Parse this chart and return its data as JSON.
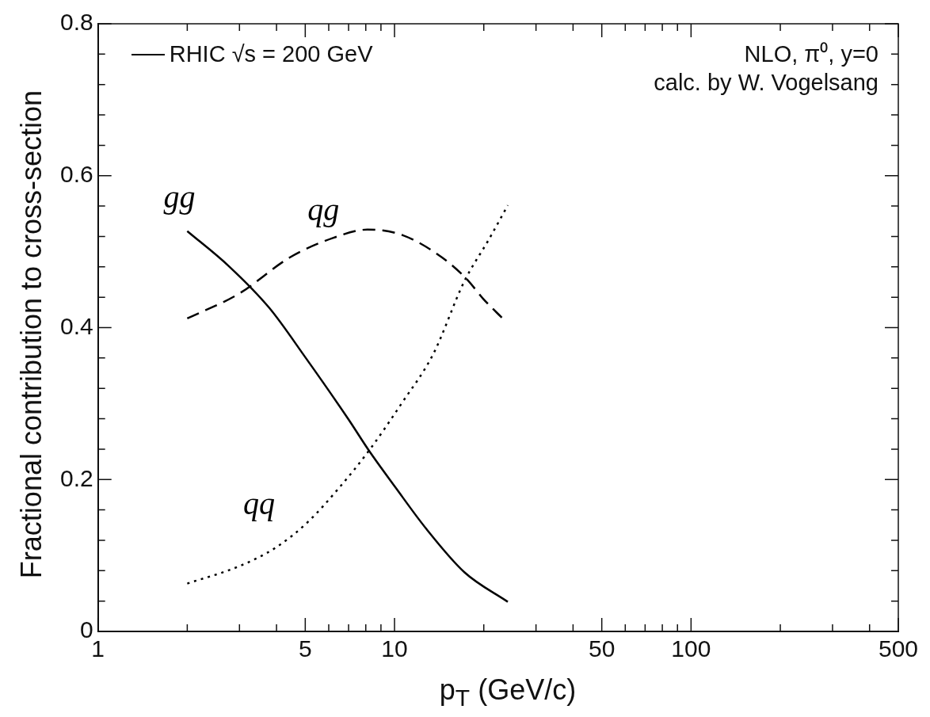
{
  "chart_data": {
    "type": "line",
    "xlabel": "p$_{T}$ (GeV/c)",
    "ylabel": "Fractional contribution to cross-section",
    "annotations": [
      "RHIC √s = 200 GeV",
      "NLO, π⁰, y=0",
      "calc. by W. Vogelsang"
    ],
    "log": "x",
    "grid": false,
    "legend": false,
    "marker": "none",
    "xlim": [
      1,
      500
    ],
    "ylim": [
      0,
      0.8
    ],
    "xticks": [
      1,
      {
        "value": 2,
        "label": null
      },
      {
        "value": 3,
        "label": null
      },
      {
        "value": 4,
        "label": null
      },
      5,
      {
        "value": 6,
        "label": null
      },
      {
        "value": 7,
        "label": null
      },
      {
        "value": 8,
        "label": null
      },
      {
        "value": 9,
        "label": null
      },
      10,
      {
        "value": 20,
        "label": null
      },
      {
        "value": 30,
        "label": null
      },
      {
        "value": 40,
        "label": null
      },
      50,
      {
        "value": 60,
        "label": null
      },
      {
        "value": 70,
        "label": null
      },
      {
        "value": 80,
        "label": null
      },
      {
        "value": 90,
        "label": null
      },
      100,
      {
        "value": 200,
        "label": null
      },
      {
        "value": 300,
        "label": null
      },
      {
        "value": 400,
        "label": null
      },
      500
    ],
    "yticks": [
      0,
      {
        "value": 0.04,
        "label": null
      },
      {
        "value": 0.08,
        "label": null
      },
      {
        "value": 0.12,
        "label": null
      },
      {
        "value": 0.16,
        "label": null
      },
      0.2,
      {
        "value": 0.24,
        "label": null
      },
      {
        "value": 0.28,
        "label": null
      },
      {
        "value": 0.32,
        "label": null
      },
      {
        "value": 0.36,
        "label": null
      },
      0.4,
      {
        "value": 0.44,
        "label": null
      },
      {
        "value": 0.48,
        "label": null
      },
      {
        "value": 0.52,
        "label": null
      },
      {
        "value": 0.56,
        "label": null
      },
      0.6,
      {
        "value": 0.64,
        "label": null
      },
      {
        "value": 0.68,
        "label": null
      },
      {
        "value": 0.72,
        "label": null
      },
      {
        "value": 0.76,
        "label": null
      },
      0.8
    ],
    "series": [
      {
        "name": "gg",
        "color": "#000000",
        "line_style": "solid",
        "x": [
          2,
          2.76,
          3.78,
          5,
          7,
          8.2,
          10.1,
          12.8,
          17.2,
          24.1
        ],
        "values": [
          0.527,
          0.481,
          0.426,
          0.361,
          0.279,
          0.238,
          0.189,
          0.135,
          0.078,
          0.039
        ]
      },
      {
        "name": "qg",
        "color": "#000000",
        "line_style": "dashed",
        "x": [
          2,
          3,
          4.42,
          6.2,
          8.1,
          10.6,
          14.5,
          17.6,
          19.9,
          23.3
        ],
        "values": [
          0.412,
          0.445,
          0.492,
          0.518,
          0.529,
          0.522,
          0.492,
          0.463,
          0.438,
          0.411
        ]
      },
      {
        "name": "qq",
        "color": "#000000",
        "line_style": "dotted",
        "x": [
          2,
          3,
          4,
          5.1,
          6.5,
          8.2,
          10.6,
          13.5,
          17.2,
          20.8,
          24.1
        ],
        "values": [
          0.063,
          0.086,
          0.111,
          0.144,
          0.189,
          0.238,
          0.301,
          0.365,
          0.461,
          0.516,
          0.561
        ]
      }
    ]
  }
}
